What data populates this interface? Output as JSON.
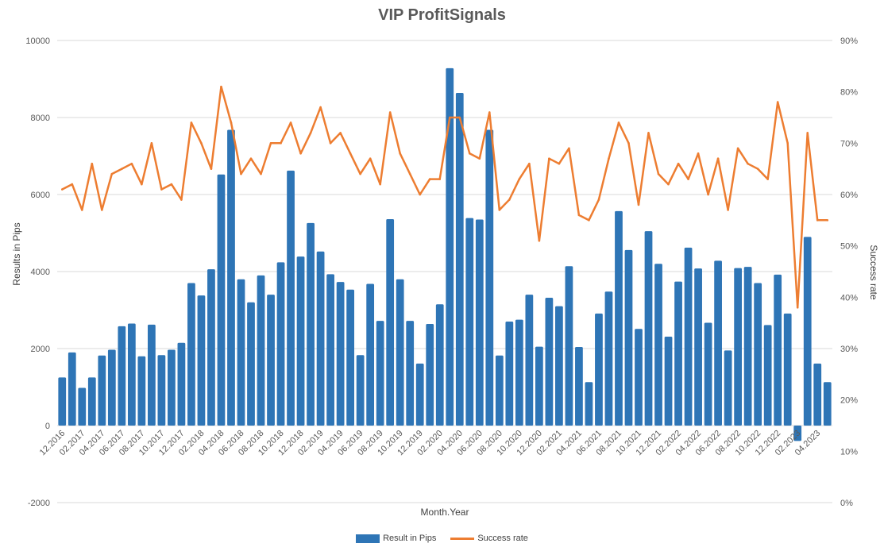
{
  "colors": {
    "bar": "#2e75b6",
    "line": "#ed7d31",
    "grid": "#d9d9d9",
    "text": "#595959"
  },
  "chart_data": {
    "type": "bar",
    "title": "VIP ProfitSignals",
    "xlabel": "Month.Year",
    "ylabel": "Results in Pips",
    "y2label": "Success rate",
    "ylim": [
      -2000,
      10000
    ],
    "yticks": [
      -2000,
      0,
      2000,
      4000,
      6000,
      8000,
      10000
    ],
    "y2lim": [
      0,
      90
    ],
    "y2ticks": [
      "0%",
      "10%",
      "20%",
      "30%",
      "40%",
      "50%",
      "60%",
      "70%",
      "80%",
      "90%"
    ],
    "grid": true,
    "legend_position": "bottom",
    "categories": [
      "12.2016",
      "01.2017",
      "02.2017",
      "03.2017",
      "04.2017",
      "05.2017",
      "06.2017",
      "07.2017",
      "08.2017",
      "09.2017",
      "10.2017",
      "11.2017",
      "12.2017",
      "01.2018",
      "02.2018",
      "03.2018",
      "04.2018",
      "05.2018",
      "06.2018",
      "07.2018",
      "08.2018",
      "09.2018",
      "10.2018",
      "11.2018",
      "12.2018",
      "01.2019",
      "02.2019",
      "03.2019",
      "04.2019",
      "05.2019",
      "06.2019",
      "07.2019",
      "08.2019",
      "09.2019",
      "10.2019",
      "11.2019",
      "12.2019",
      "01.2020",
      "02.2020",
      "03.2020",
      "04.2020",
      "05.2020",
      "06.2020",
      "07.2020",
      "08.2020",
      "09.2020",
      "10.2020",
      "11.2020",
      "12.2020",
      "01.2021",
      "02.2021",
      "03.2021",
      "04.2021",
      "05.2021",
      "06.2021",
      "07.2021",
      "08.2021",
      "09.2021",
      "10.2021",
      "11.2021",
      "12.2021",
      "01.2022",
      "02.2022",
      "03.2022",
      "04.2022",
      "05.2022",
      "06.2022",
      "07.2022",
      "08.2022",
      "09.2022",
      "10.2022",
      "11.2022",
      "12.2022",
      "01.2023",
      "02.2023",
      "03.2023",
      "04.2023",
      "05.2023"
    ],
    "tick_labels": [
      "12.2016",
      "02.2017",
      "04.2017",
      "06.2017",
      "08.2017",
      "10.2017",
      "12.2017",
      "02.2018",
      "04.2018",
      "06.2018",
      "08.2018",
      "10.2018",
      "12.2018",
      "02.2019",
      "04.2019",
      "06.2019",
      "08.2019",
      "10.2019",
      "12.2019",
      "02.2020",
      "04.2020",
      "06.2020",
      "08.2020",
      "10.2020",
      "12.2020",
      "02.2021",
      "04.2021",
      "06.2021",
      "08.2021",
      "10.2021",
      "12.2021",
      "02.2022",
      "04.2022",
      "06.2022",
      "08.2022",
      "10.2022",
      "12.2022",
      "02.2023",
      "04.2023"
    ],
    "series": [
      {
        "name": "Result in Pips",
        "type": "bar",
        "values": [
          1250,
          1900,
          980,
          1250,
          1820,
          1970,
          2580,
          2650,
          1800,
          2620,
          1830,
          1970,
          2150,
          3700,
          3380,
          4060,
          6520,
          7680,
          3800,
          3200,
          3900,
          3400,
          4240,
          6620,
          4390,
          5260,
          4520,
          3930,
          3730,
          3530,
          1830,
          3680,
          2720,
          5360,
          3800,
          2720,
          1610,
          2640,
          3150,
          9280,
          8640,
          5390,
          5350,
          7680,
          1820,
          2700,
          2750,
          3400,
          2050,
          3320,
          3100,
          4140,
          2040,
          1130,
          2910,
          3480,
          5570,
          4560,
          2510,
          5050,
          4200,
          2310,
          3740,
          4620,
          4080,
          2670,
          4280,
          1950,
          4090,
          4120,
          3700,
          2610,
          3920,
          2910,
          -400,
          4900,
          1610,
          1130
        ]
      },
      {
        "name": "Success rate",
        "type": "line",
        "values": [
          61,
          62,
          57,
          66,
          57,
          64,
          65,
          66,
          62,
          70,
          61,
          62,
          59,
          74,
          70,
          65,
          81,
          74,
          64,
          67,
          64,
          70,
          70,
          74,
          68,
          72,
          77,
          70,
          72,
          68,
          64,
          67,
          62,
          76,
          68,
          64,
          60,
          63,
          63,
          75,
          75,
          68,
          67,
          76,
          57,
          59,
          63,
          66,
          51,
          67,
          66,
          69,
          56,
          55,
          59,
          67,
          74,
          70,
          58,
          72,
          64,
          62,
          66,
          63,
          68,
          60,
          67,
          57,
          69,
          66,
          65,
          63,
          78,
          70,
          38,
          72,
          55,
          55
        ]
      }
    ]
  }
}
